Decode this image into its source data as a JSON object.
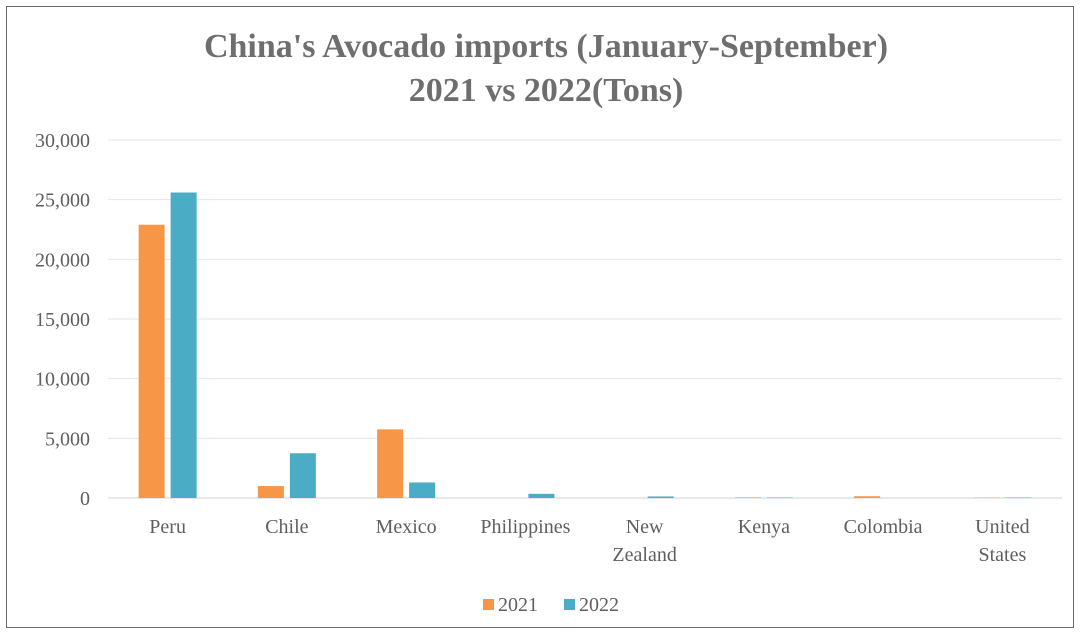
{
  "chart_data": {
    "type": "bar",
    "title_lines": [
      "China's Avocado imports (January-September)",
      "2021 vs 2022(Tons)"
    ],
    "categories": [
      [
        "Peru"
      ],
      [
        "Chile"
      ],
      [
        "Mexico"
      ],
      [
        "Philippines"
      ],
      [
        "New",
        "Zealand"
      ],
      [
        "Kenya"
      ],
      [
        "Colombia"
      ],
      [
        "United",
        "States"
      ]
    ],
    "series": [
      {
        "name": "2021",
        "color": "#f79646",
        "values": [
          22900,
          1000,
          5750,
          0,
          0,
          50,
          150,
          30
        ]
      },
      {
        "name": "2022",
        "color": "#4bacc6",
        "values": [
          25600,
          3750,
          1300,
          350,
          130,
          40,
          0,
          40
        ]
      }
    ],
    "ylim": [
      0,
      30000
    ],
    "yticks": [
      0,
      5000,
      10000,
      15000,
      20000,
      25000,
      30000
    ],
    "ytick_labels": [
      "0",
      "5,000",
      "10,000",
      "15,000",
      "20,000",
      "25,000",
      "30,000"
    ],
    "grid": true,
    "legend_position": "bottom"
  }
}
